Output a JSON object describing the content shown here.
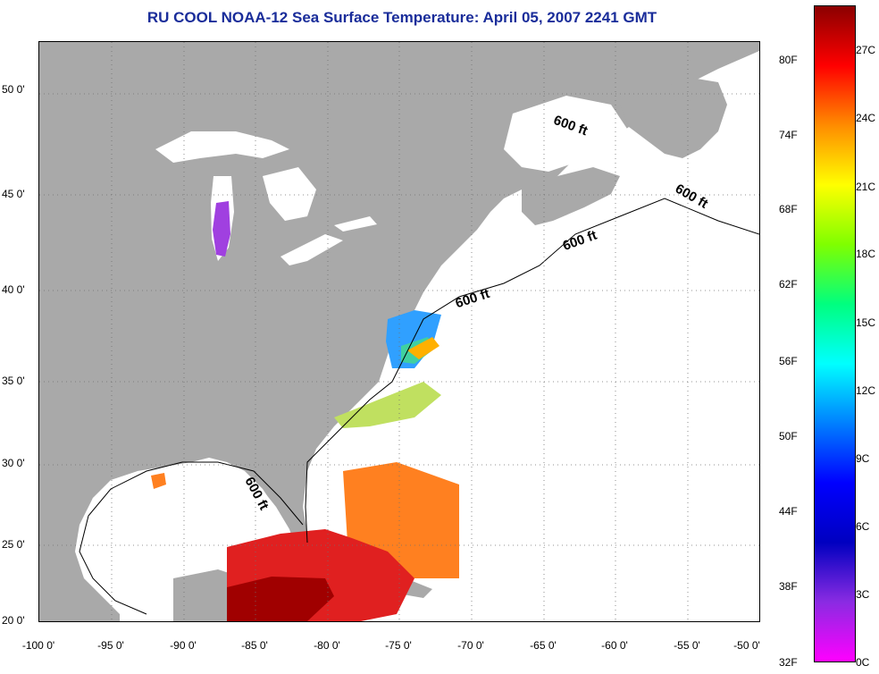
{
  "title": "RU COOL  NOAA-12  Sea Surface Temperature:  April 05, 2007 2241 GMT",
  "lat_labels": [
    "50 0'",
    "45 0'",
    "40 0'",
    "35 0'",
    "30 0'",
    "25 0'",
    "20 0'"
  ],
  "lon_labels": [
    "-100 0'",
    "-95 0'",
    "-90 0'",
    "-85 0'",
    "-80 0'",
    "-75 0'",
    "-70 0'",
    "-65 0'",
    "-60 0'",
    "-55 0'",
    "-50 0'"
  ],
  "isobath_labels": [
    "600 ft",
    "600 ft",
    "600 ft",
    "600 ft",
    "600 ft"
  ],
  "colorbar": {
    "fahrenheit_labels": [
      "80F",
      "74F",
      "68F",
      "62F",
      "56F",
      "50F",
      "44F",
      "38F",
      "32F"
    ],
    "celsius_labels": [
      "27C",
      "24C",
      "21C",
      "18C",
      "15C",
      "12C",
      "9C",
      "6C",
      "3C",
      "0C"
    ],
    "gradient_colors": [
      "#8b0000",
      "#ff0000",
      "#ff8c00",
      "#ffff00",
      "#7fff00",
      "#00ff7f",
      "#00ffff",
      "#0080ff",
      "#0000ff",
      "#0000c0",
      "#8a2be2",
      "#ff00ff"
    ]
  },
  "colors": {
    "land": "#a9a9a9",
    "no_data": "#ffffff",
    "title": "#1a2d9a"
  }
}
